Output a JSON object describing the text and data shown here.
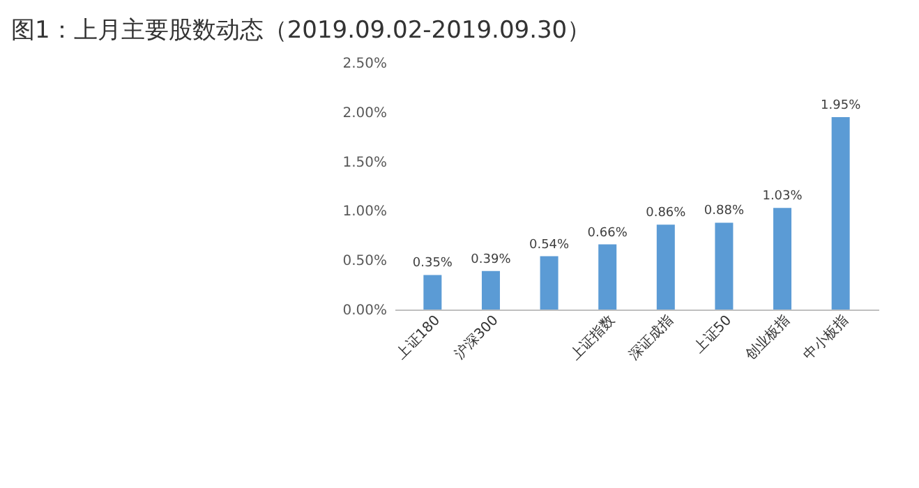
{
  "chart_data": {
    "type": "bar",
    "title": "图1：上月主要股数动态（2019.09.02-2019.09.30）",
    "categories": [
      "上证180",
      "沪深300",
      null,
      "上证指数",
      "深证成指",
      "上证50",
      "创业板指",
      "中小板指"
    ],
    "values": [
      0.35,
      0.39,
      0.54,
      0.66,
      0.86,
      0.88,
      1.03,
      1.95
    ],
    "value_labels": [
      "0.35%",
      "0.39%",
      "0.54%",
      "0.66%",
      "0.86%",
      "0.88%",
      "1.03%",
      "1.95%"
    ],
    "color": "#5b9bd5",
    "ylim": [
      0,
      2.5
    ],
    "yticks": [
      {
        "value": 0,
        "label": "0.00%"
      },
      {
        "value": 0.5,
        "label": "0.50%"
      },
      {
        "value": 1,
        "label": "1.00%"
      },
      {
        "value": 1.5,
        "label": "1.50%"
      },
      {
        "value": 2,
        "label": "2.00%"
      },
      {
        "value": 2.5,
        "label": "2.50%"
      }
    ],
    "grid": false
  }
}
